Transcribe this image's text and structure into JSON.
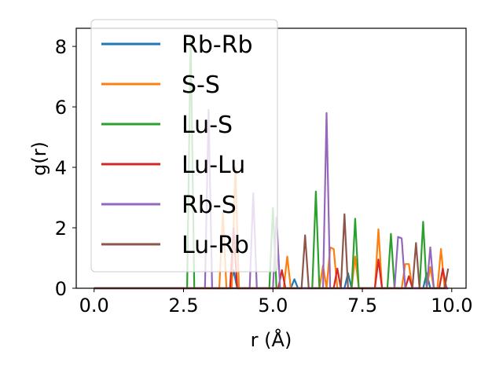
{
  "chart_data": {
    "type": "line",
    "xlabel": "r (Å)",
    "ylabel": "g(r)",
    "xlim": [
      -0.5,
      10.4
    ],
    "ylim": [
      0,
      8.6
    ],
    "xticks": [
      "0.0",
      "2.5",
      "5.0",
      "7.5",
      "10.0"
    ],
    "xtick_values": [
      0,
      2.5,
      5,
      7.5,
      10
    ],
    "yticks": [
      "0",
      "2",
      "4",
      "6",
      "8"
    ],
    "ytick_values": [
      0,
      2,
      4,
      6,
      8
    ],
    "grid": false,
    "legend_position": "upper-left",
    "series": [
      {
        "name": "Rb-Rb",
        "color": "#1f77b4",
        "points": [
          [
            0,
            0
          ],
          [
            3.8,
            0
          ],
          [
            3.9,
            0.6
          ],
          [
            4.0,
            0
          ],
          [
            5.5,
            0
          ],
          [
            5.6,
            0.3
          ],
          [
            5.7,
            0
          ],
          [
            7.0,
            0
          ],
          [
            7.1,
            0.5
          ],
          [
            7.2,
            0
          ],
          [
            9.2,
            0
          ],
          [
            9.3,
            0.5
          ],
          [
            9.4,
            0
          ],
          [
            9.9,
            0
          ]
        ]
      },
      {
        "name": "S-S",
        "color": "#ff7f0e",
        "points": [
          [
            0,
            0
          ],
          [
            3.5,
            0
          ],
          [
            3.6,
            2.5
          ],
          [
            3.7,
            0
          ],
          [
            3.85,
            0
          ],
          [
            3.95,
            4.0
          ],
          [
            4.05,
            0
          ],
          [
            5.3,
            0
          ],
          [
            5.4,
            1.05
          ],
          [
            5.5,
            0
          ],
          [
            6.3,
            0
          ],
          [
            6.4,
            0.75
          ],
          [
            6.5,
            0
          ],
          [
            6.6,
            1.35
          ],
          [
            6.7,
            1.3
          ],
          [
            6.8,
            0
          ],
          [
            7.2,
            0
          ],
          [
            7.3,
            1.05
          ],
          [
            7.4,
            0
          ],
          [
            7.85,
            0
          ],
          [
            7.95,
            1.95
          ],
          [
            8.05,
            0
          ],
          [
            8.6,
            0
          ],
          [
            8.7,
            0.8
          ],
          [
            8.8,
            0.8
          ],
          [
            8.9,
            0
          ],
          [
            9.3,
            0
          ],
          [
            9.4,
            0.7
          ],
          [
            9.5,
            0
          ],
          [
            9.6,
            0
          ],
          [
            9.7,
            1.3
          ],
          [
            9.8,
            0
          ],
          [
            9.9,
            0
          ]
        ]
      },
      {
        "name": "Lu-S",
        "color": "#2ca02c",
        "points": [
          [
            0,
            0
          ],
          [
            2.6,
            0
          ],
          [
            2.7,
            8.3
          ],
          [
            2.8,
            0
          ],
          [
            4.9,
            0
          ],
          [
            5.0,
            2.65
          ],
          [
            5.1,
            0
          ],
          [
            6.1,
            0
          ],
          [
            6.2,
            3.2
          ],
          [
            6.3,
            0
          ],
          [
            7.2,
            0
          ],
          [
            7.3,
            2.3
          ],
          [
            7.4,
            0
          ],
          [
            8.2,
            0
          ],
          [
            8.3,
            1.8
          ],
          [
            8.4,
            0
          ],
          [
            9.1,
            0
          ],
          [
            9.2,
            2.2
          ],
          [
            9.3,
            0
          ],
          [
            9.9,
            0
          ]
        ]
      },
      {
        "name": "Lu-Lu",
        "color": "#d62728",
        "points": [
          [
            0,
            0
          ],
          [
            3.8,
            0
          ],
          [
            3.9,
            2.0
          ],
          [
            4.0,
            0
          ],
          [
            5.15,
            0
          ],
          [
            5.25,
            0.6
          ],
          [
            5.35,
            0
          ],
          [
            6.7,
            0
          ],
          [
            6.8,
            0.65
          ],
          [
            6.9,
            0
          ],
          [
            7.85,
            0
          ],
          [
            7.95,
            0.95
          ],
          [
            8.05,
            0
          ],
          [
            8.7,
            0
          ],
          [
            8.8,
            0.4
          ],
          [
            8.9,
            0
          ],
          [
            9.65,
            0
          ],
          [
            9.75,
            0.65
          ],
          [
            9.85,
            0
          ],
          [
            9.9,
            0
          ]
        ]
      },
      {
        "name": "Rb-S",
        "color": "#9467bd",
        "points": [
          [
            0,
            0
          ],
          [
            3.1,
            0
          ],
          [
            3.2,
            5.9
          ],
          [
            3.3,
            0
          ],
          [
            4.35,
            0
          ],
          [
            4.45,
            3.15
          ],
          [
            4.55,
            0
          ],
          [
            5.0,
            0
          ],
          [
            5.1,
            2.35
          ],
          [
            5.2,
            0
          ],
          [
            6.4,
            0
          ],
          [
            6.5,
            5.8
          ],
          [
            6.6,
            0
          ],
          [
            8.4,
            0
          ],
          [
            8.5,
            1.7
          ],
          [
            8.6,
            1.65
          ],
          [
            8.7,
            0
          ],
          [
            9.3,
            0
          ],
          [
            9.4,
            1.35
          ],
          [
            9.5,
            0
          ],
          [
            9.9,
            0
          ]
        ]
      },
      {
        "name": "Lu-Rb",
        "color": "#8c564b",
        "points": [
          [
            0,
            0
          ],
          [
            5.8,
            0
          ],
          [
            5.9,
            1.75
          ],
          [
            6.0,
            0
          ],
          [
            6.9,
            0
          ],
          [
            7.0,
            2.45
          ],
          [
            7.1,
            0
          ],
          [
            8.9,
            0
          ],
          [
            9.0,
            1.5
          ],
          [
            9.1,
            0
          ],
          [
            9.8,
            0
          ],
          [
            9.9,
            0.65
          ]
        ]
      }
    ]
  }
}
